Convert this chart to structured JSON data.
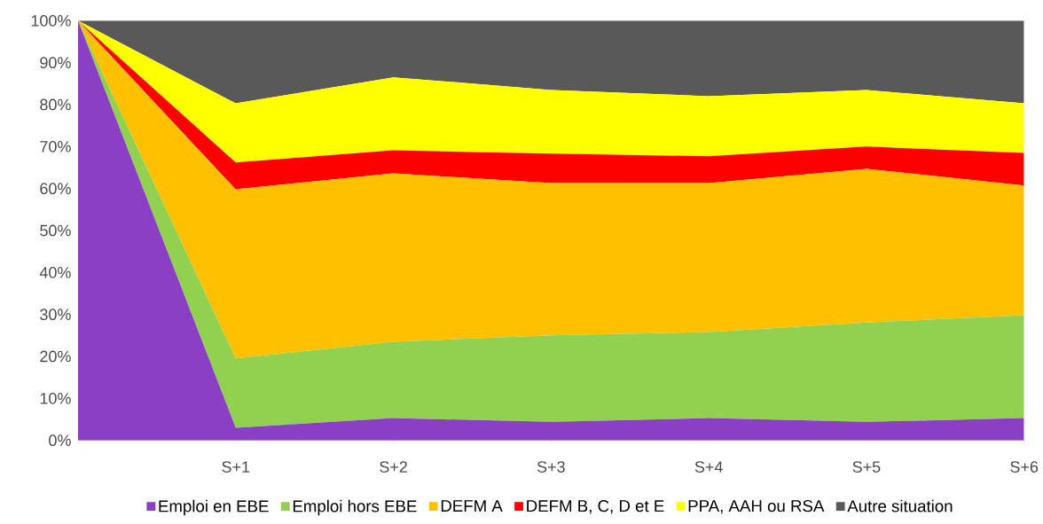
{
  "chart_data": {
    "type": "area",
    "stacked": true,
    "legend": "bottom",
    "categories": [
      null,
      "S+1",
      "S+2",
      "S+3",
      "S+4",
      "S+5",
      "S+6"
    ],
    "series": [
      {
        "name": "Emploi en EBE",
        "color": "#8b3fc5",
        "values": [
          100,
          3.0,
          5.3,
          4.4,
          5.3,
          4.4,
          5.3
        ]
      },
      {
        "name": "Emploi hors EBE",
        "color": "#92d050",
        "values": [
          0,
          16.5,
          18.2,
          20.6,
          20.5,
          23.7,
          24.5
        ]
      },
      {
        "name": "DEFM A",
        "color": "#ffc000",
        "values": [
          0,
          40.3,
          40.1,
          36.3,
          35.5,
          36.6,
          30.9
        ]
      },
      {
        "name": "DEFM B, C, D et E",
        "color": "#ff0000",
        "values": [
          0,
          6.4,
          5.5,
          7.0,
          6.4,
          5.3,
          7.8
        ]
      },
      {
        "name": "PPA, AAH ou RSA",
        "color": "#ffff00",
        "values": [
          0,
          14.1,
          17.4,
          15.2,
          14.3,
          13.5,
          11.8
        ]
      },
      {
        "name": "Autre situation",
        "color": "#595959",
        "values": [
          0,
          19.7,
          13.5,
          16.5,
          18.0,
          16.5,
          19.7
        ]
      }
    ],
    "ylim": [
      0,
      100
    ],
    "yticks": [
      {
        "value": 0,
        "label": "0%"
      },
      {
        "value": 10,
        "label": "10%"
      },
      {
        "value": 20,
        "label": "20%"
      },
      {
        "value": 30,
        "label": "30%"
      },
      {
        "value": 40,
        "label": "40%"
      },
      {
        "value": 50,
        "label": "50%"
      },
      {
        "value": 60,
        "label": "60%"
      },
      {
        "value": 70,
        "label": "70%"
      },
      {
        "value": 80,
        "label": "80%"
      },
      {
        "value": 90,
        "label": "90%"
      },
      {
        "value": 100,
        "label": "100%"
      }
    ]
  }
}
